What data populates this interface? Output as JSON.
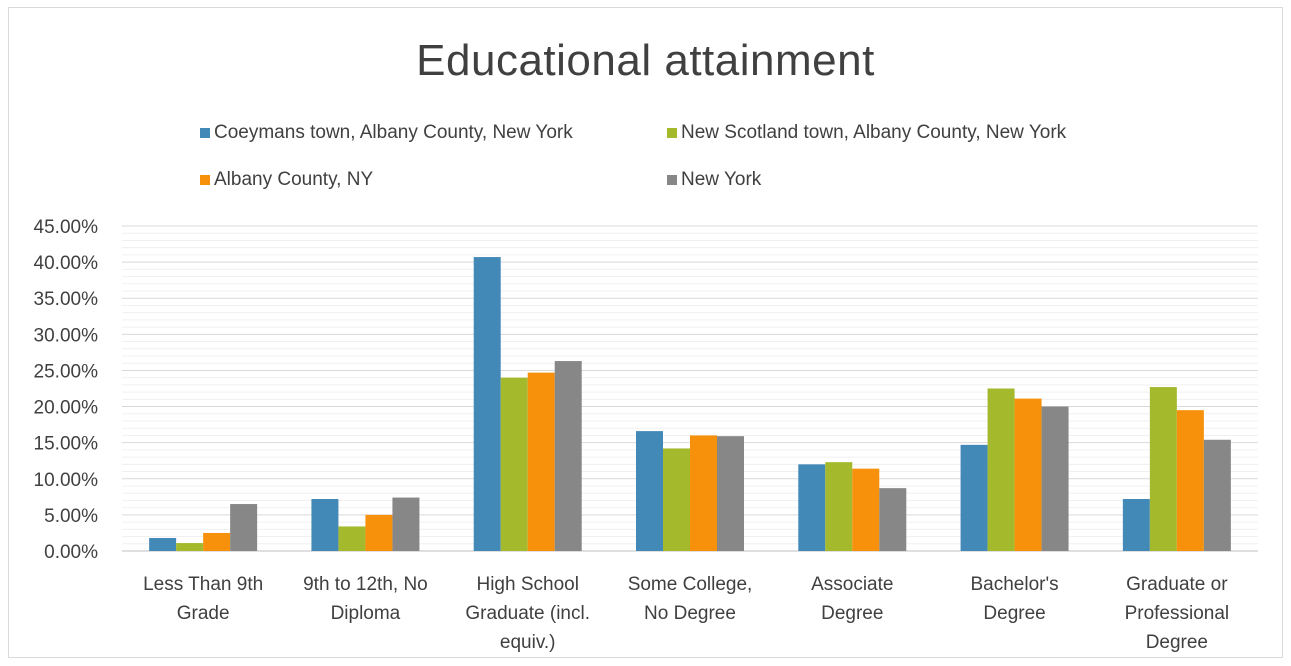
{
  "chart_data": {
    "type": "bar",
    "title": "Educational attainment",
    "categories": [
      [
        "Less Than 9th",
        "Grade"
      ],
      [
        "9th to 12th, No",
        "Diploma"
      ],
      [
        "High School",
        "Graduate (incl.",
        "equiv.)"
      ],
      [
        "Some College,",
        "No Degree"
      ],
      [
        "Associate",
        "Degree"
      ],
      [
        "Bachelor's",
        "Degree"
      ],
      [
        "Graduate or",
        "Professional",
        "Degree"
      ]
    ],
    "series": [
      {
        "name": "Coeymans town, Albany County, New York",
        "color": "#4389B8",
        "values": [
          1.8,
          7.2,
          40.7,
          16.6,
          12.0,
          14.7,
          7.2
        ]
      },
      {
        "name": "New Scotland town, Albany County, New York",
        "color": "#A5B92D",
        "values": [
          1.1,
          3.4,
          24.0,
          14.2,
          12.3,
          22.5,
          22.7
        ]
      },
      {
        "name": "Albany County, NY",
        "color": "#F7900A",
        "values": [
          2.5,
          5.0,
          24.7,
          16.0,
          11.4,
          21.1,
          19.5
        ]
      },
      {
        "name": "New York",
        "color": "#878787",
        "values": [
          6.5,
          7.4,
          26.3,
          15.9,
          8.7,
          20.0,
          15.4
        ]
      }
    ],
    "ylim": [
      0,
      45
    ],
    "yticks": [
      "0.00%",
      "5.00%",
      "10.00%",
      "15.00%",
      "20.00%",
      "25.00%",
      "30.00%",
      "35.00%",
      "40.00%",
      "45.00%"
    ],
    "grid": true,
    "minor_grid": true,
    "legend_position": "top"
  }
}
